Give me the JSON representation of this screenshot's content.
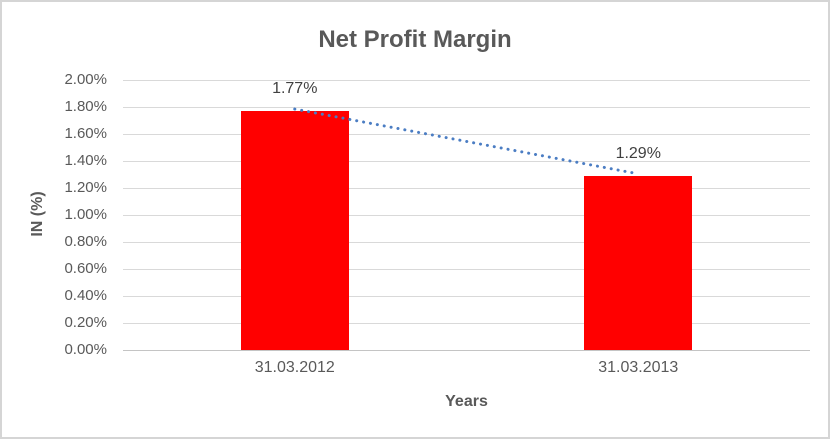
{
  "chart": {
    "title": "Net Profit Margin",
    "x_axis_title": "Years",
    "y_axis_title": "IN (%)",
    "y_ticks": [
      "2.00%",
      "1.80%",
      "1.60%",
      "1.40%",
      "1.20%",
      "1.00%",
      "0.80%",
      "0.60%",
      "0.40%",
      "0.20%",
      "0.00%"
    ],
    "categories": [
      "31.03.2012",
      "31.03.2013"
    ],
    "data_labels": [
      "1.77%",
      "1.29%"
    ],
    "colors": {
      "bar": "#FF0000",
      "trendline": "#4B7DC3",
      "title_text": "#595959",
      "tick_text": "#595959",
      "data_label_text": "#404040",
      "gridline": "#D9D9D9",
      "axis_line": "#C4C4C4",
      "frame_border": "#D5D5D5"
    }
  },
  "chart_data": {
    "type": "bar",
    "title": "Net Profit Margin",
    "xlabel": "Years",
    "ylabel": "IN (%)",
    "categories": [
      "31.03.2012",
      "31.03.2013"
    ],
    "values": [
      1.77,
      1.29
    ],
    "value_labels": [
      "1.77%",
      "1.29%"
    ],
    "unit": "%",
    "ylim": [
      0,
      2.0
    ],
    "ytick_step": 0.2,
    "grid": true,
    "legend": false,
    "bar_color": "#FF0000",
    "trendline": {
      "style": "dotted",
      "color": "#4B7DC3",
      "from_value": 1.77,
      "to_value": 1.29
    }
  }
}
